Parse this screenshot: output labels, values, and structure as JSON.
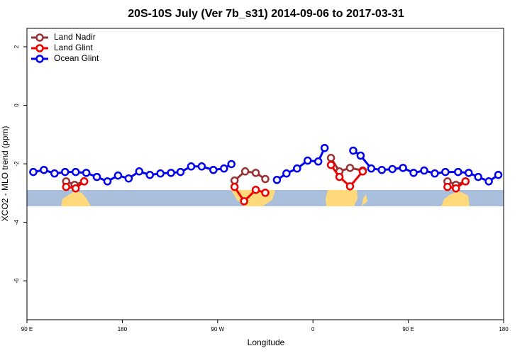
{
  "chart_data": {
    "type": "line",
    "title": "20S-10S July (Ver 7b_s31)   2014-09-06 to 2017-03-31",
    "xlabel": "Longitude",
    "ylabel": "XCO2 - MLO trend (ppm)",
    "xlim": [
      90,
      540
    ],
    "xticks": [
      {
        "value": 90,
        "label": "90 E"
      },
      180,
      {
        "value": 270,
        "label": "90 W"
      },
      {
        "value": 360,
        "label": "0"
      },
      {
        "value": 450,
        "label": "90 E"
      },
      {
        "value": 540,
        "label": "180"
      }
    ],
    "ylim": [
      -7.33,
      2.63
    ],
    "yticks": [
      2,
      0,
      -2,
      -4,
      -6
    ],
    "legend": "top-left",
    "series": [
      {
        "name": "Land Nadir",
        "color": "#993333",
        "x": [
          127,
          135,
          144,
          null,
          286,
          296,
          306,
          315,
          null,
          377,
          385,
          395,
          407,
          null,
          487,
          495,
          504
        ],
        "values": [
          -2.6,
          -2.72,
          -2.6,
          null,
          -2.57,
          -2.26,
          -2.31,
          -2.52,
          null,
          -1.8,
          -2.26,
          -2.14,
          -2.23,
          null,
          -2.6,
          -2.72,
          -2.6
        ]
      },
      {
        "name": "Land Glint",
        "color": "#ee0000",
        "x": [
          127,
          136,
          144,
          null,
          286,
          295,
          306,
          315,
          null,
          377,
          385,
          395,
          407,
          null,
          487,
          495,
          504
        ],
        "values": [
          -2.79,
          -2.84,
          -2.6,
          null,
          -2.79,
          -3.28,
          -2.89,
          -2.99,
          null,
          -2.04,
          -2.45,
          -2.77,
          -2.26,
          null,
          -2.79,
          -2.84,
          -2.6
        ]
      },
      {
        "name": "Ocean Glint",
        "color": "#0000ee",
        "x": [
          96,
          106,
          116,
          126,
          136,
          146,
          156,
          166,
          176,
          186,
          196,
          206,
          216,
          226,
          235,
          245,
          255,
          266,
          276,
          283,
          null,
          326,
          335,
          345,
          355,
          365,
          371,
          null,
          398,
          405,
          415,
          425,
          435,
          445,
          455,
          465,
          475,
          485,
          497,
          507,
          516,
          526,
          535
        ],
        "values": [
          -2.28,
          -2.21,
          -2.33,
          -2.28,
          -2.28,
          -2.31,
          -2.45,
          -2.6,
          -2.4,
          -2.5,
          -2.26,
          -2.38,
          -2.33,
          -2.31,
          -2.28,
          -2.09,
          -2.09,
          -2.21,
          -2.16,
          -2.01,
          null,
          -2.55,
          -2.33,
          -2.16,
          -1.89,
          -1.92,
          -1.46,
          null,
          -1.55,
          -1.72,
          -2.16,
          -2.21,
          -2.18,
          -2.14,
          -2.31,
          -2.23,
          -2.33,
          -2.28,
          -2.28,
          -2.31,
          -2.45,
          -2.6,
          -2.38
        ]
      }
    ]
  }
}
